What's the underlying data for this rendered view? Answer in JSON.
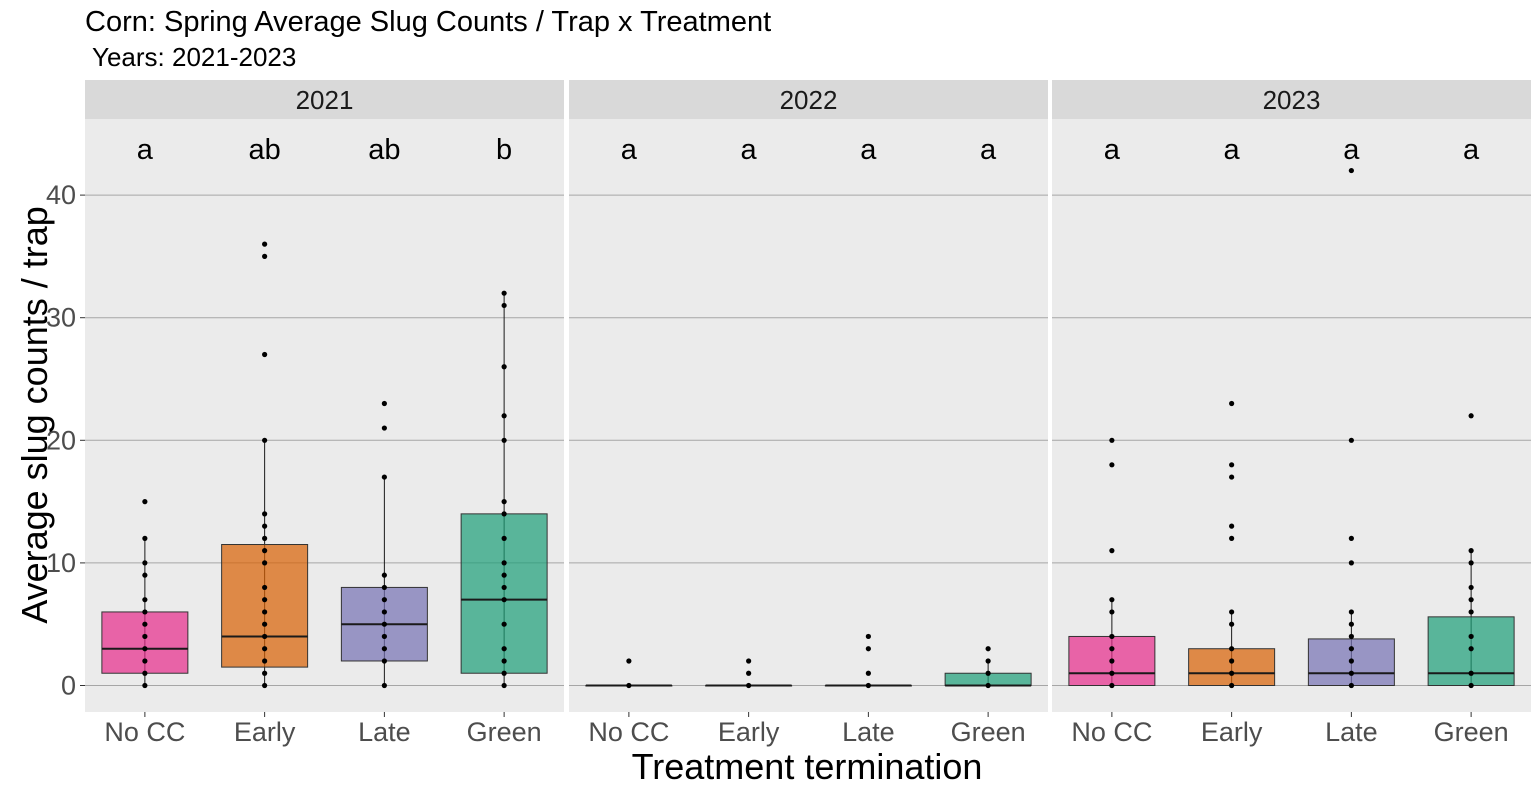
{
  "chart_data": {
    "type": "box",
    "title": "Corn: Spring Average Slug Counts / Trap x Treatment",
    "subtitle": "Years: 2021-2023",
    "xlabel": "Treatment termination",
    "ylabel": "Average slug counts / trap",
    "ylim": [
      -2.2,
      46.5
    ],
    "yticks": [
      0,
      10,
      20,
      30,
      40
    ],
    "grid": true,
    "categories": [
      "No CC",
      "Early",
      "Late",
      "Green"
    ],
    "colors": {
      "No CC": "#e7298a",
      "Early": "#d95f02",
      "Late": "#7570b3",
      "Green": "#1b9e77"
    },
    "panels": [
      {
        "label": "2021",
        "groups": [
          {
            "category": "No CC",
            "letter": "a",
            "box": {
              "q1": 1,
              "median": 3,
              "q3": 6,
              "whisker_low": 0,
              "whisker_high": 12
            },
            "points": [
              0,
              1,
              2,
              3,
              4,
              5,
              6,
              7,
              9,
              10,
              12,
              15
            ]
          },
          {
            "category": "Early",
            "letter": "ab",
            "box": {
              "q1": 1.5,
              "median": 4,
              "q3": 11.5,
              "whisker_low": 0,
              "whisker_high": 20
            },
            "points": [
              0,
              1,
              2,
              3,
              4,
              5,
              6,
              7,
              8,
              10,
              11,
              12,
              13,
              14,
              20,
              27,
              35,
              36
            ]
          },
          {
            "category": "Late",
            "letter": "ab",
            "box": {
              "q1": 2,
              "median": 5,
              "q3": 8,
              "whisker_low": 0,
              "whisker_high": 17
            },
            "points": [
              0,
              2,
              3,
              4,
              5,
              6,
              7,
              8,
              9,
              17,
              21,
              23
            ]
          },
          {
            "category": "Green",
            "letter": "b",
            "box": {
              "q1": 1,
              "median": 7,
              "q3": 14,
              "whisker_low": 0,
              "whisker_high": 32
            },
            "points": [
              0,
              1,
              2,
              3,
              5,
              7,
              8,
              9,
              10,
              12,
              14,
              15,
              20,
              22,
              26,
              31,
              32
            ]
          }
        ]
      },
      {
        "label": "2022",
        "groups": [
          {
            "category": "No CC",
            "letter": "a",
            "box": {
              "q1": 0,
              "median": 0,
              "q3": 0,
              "whisker_low": 0,
              "whisker_high": 0
            },
            "points": [
              0,
              2
            ]
          },
          {
            "category": "Early",
            "letter": "a",
            "box": {
              "q1": 0,
              "median": 0,
              "q3": 0,
              "whisker_low": 0,
              "whisker_high": 0
            },
            "points": [
              0,
              1,
              2
            ]
          },
          {
            "category": "Late",
            "letter": "a",
            "box": {
              "q1": 0,
              "median": 0,
              "q3": 0,
              "whisker_low": 0,
              "whisker_high": 0
            },
            "points": [
              0,
              1,
              3,
              4
            ]
          },
          {
            "category": "Green",
            "letter": "a",
            "box": {
              "q1": 0,
              "median": 0,
              "q3": 1,
              "whisker_low": 0,
              "whisker_high": 2
            },
            "points": [
              0,
              1,
              2,
              3
            ]
          }
        ]
      },
      {
        "label": "2023",
        "groups": [
          {
            "category": "No CC",
            "letter": "a",
            "box": {
              "q1": 0,
              "median": 1,
              "q3": 4,
              "whisker_low": 0,
              "whisker_high": 7
            },
            "points": [
              0,
              1,
              2,
              3,
              4,
              6,
              7,
              11,
              18,
              20
            ]
          },
          {
            "category": "Early",
            "letter": "a",
            "box": {
              "q1": 0,
              "median": 1,
              "q3": 3,
              "whisker_low": 0,
              "whisker_high": 6
            },
            "points": [
              0,
              1,
              2,
              3,
              5,
              6,
              12,
              13,
              17,
              18,
              23
            ]
          },
          {
            "category": "Late",
            "letter": "a",
            "box": {
              "q1": 0,
              "median": 1,
              "q3": 3.8,
              "whisker_low": 0,
              "whisker_high": 6
            },
            "points": [
              0,
              1,
              2,
              3,
              4,
              5,
              6,
              10,
              12,
              20,
              42
            ]
          },
          {
            "category": "Green",
            "letter": "a",
            "box": {
              "q1": 0,
              "median": 1,
              "q3": 5.6,
              "whisker_low": 0,
              "whisker_high": 11
            },
            "points": [
              0,
              1,
              3,
              4,
              6,
              7,
              8,
              10,
              11,
              22
            ]
          }
        ]
      }
    ]
  }
}
